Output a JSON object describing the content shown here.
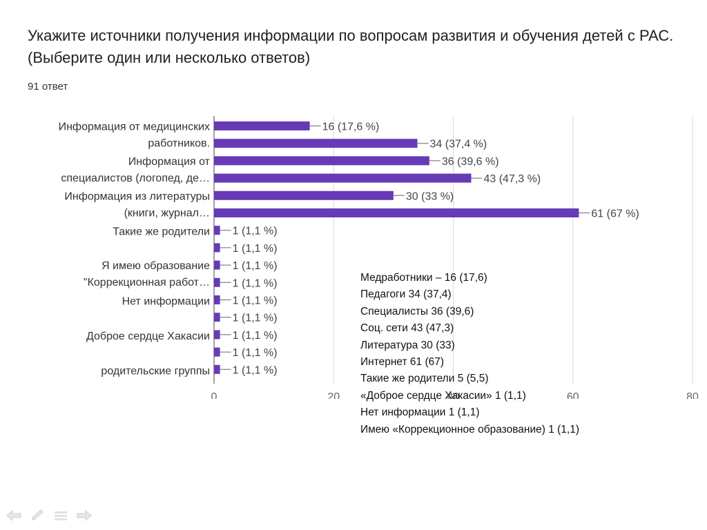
{
  "question": {
    "title": "Укажите источники получения информации по вопросам развития и обучения детей с РАС. (Выберите один или несколько ответов)",
    "response_count": "91 ответ"
  },
  "chart_data": {
    "type": "bar",
    "orientation": "horizontal",
    "bar_color": "#673ab7",
    "xlim": [
      0,
      80
    ],
    "xticks": [
      0,
      20,
      40,
      60,
      80
    ],
    "grid": true,
    "categories": [
      "Информация от медицинских работников.",
      "",
      "Информация от специалистов (логопед, де…",
      "",
      "Информация из литературы (книги, журнал…",
      "",
      "Такие же родители",
      "",
      "Я имею образование \"Коррекционная работ…",
      "",
      "Нет информации",
      "",
      "Доброе сердце Хакасии",
      "",
      "родительские группы"
    ],
    "values": [
      16,
      34,
      36,
      43,
      30,
      61,
      1,
      1,
      1,
      1,
      1,
      1,
      1,
      1,
      1
    ],
    "data_labels": [
      "16 (17,6 %)",
      "34 (37,4 %)",
      "36 (39,6 %)",
      "43 (47,3 %)",
      "30 (33 %)",
      "61 (67 %)",
      "1 (1,1 %)",
      "1 (1,1 %)",
      "1 (1,1 %)",
      "1 (1,1 %)",
      "1 (1,1 %)",
      "1 (1,1 %)",
      "1 (1,1 %)",
      "1 (1,1 %)",
      "1 (1,1 %)"
    ],
    "category_labels": [
      {
        "lines": [
          "Информация от медицинских",
          "работников."
        ]
      },
      {
        "lines": [
          "Информация от",
          "специалистов (логопед, де…"
        ]
      },
      {
        "lines": [
          "Информация из литературы",
          "(книги, журнал…"
        ]
      },
      {
        "lines": [
          "Такие же родители"
        ]
      },
      {
        "lines": [
          "Я имею образование",
          "\"Коррекционная работ…"
        ]
      },
      {
        "lines": [
          "Нет информации"
        ]
      },
      {
        "lines": [
          "Доброе сердце Хакасии"
        ]
      },
      {
        "lines": [
          "родительские группы"
        ]
      }
    ]
  },
  "notes": [
    "Медработники – 16 (17,6)",
    "Педагоги 34 (37,4)",
    "Специалисты 36 (39,6)",
    "Соц. сети 43 (47,3)",
    "Литература  30 (33)",
    "Интернет 61 (67)",
    "Такие же родители 5 (5,5)",
    "«Доброе сердце Хакасии» 1 (1,1)",
    "Нет информации 1 (1,1)",
    "Имею «Коррекционное образование) 1 (1,1)"
  ],
  "nav_icons": [
    "back-arrow-icon",
    "pen-icon",
    "menu-icon",
    "forward-arrow-icon"
  ]
}
